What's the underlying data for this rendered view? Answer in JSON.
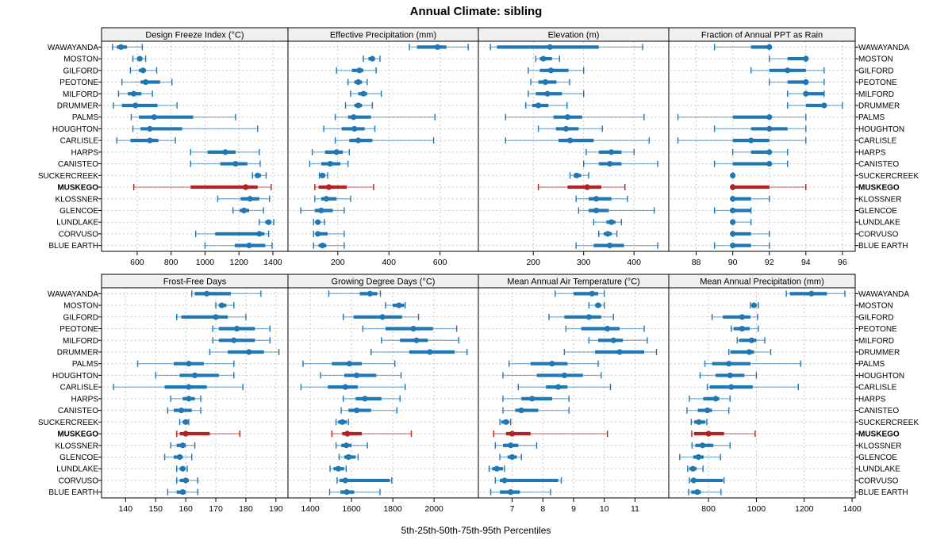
{
  "title": "Annual Climate: sibling",
  "caption": "5th-25th-50th-75th-95th Percentiles",
  "colors": {
    "series_normal": "#1F77B4",
    "series_highlight": "#B22222",
    "grid": "#C8C8C8",
    "header_bg": "#F0F0F0",
    "border": "#000000"
  },
  "chart_data": {
    "type": "scatter",
    "subtype": "percentile-interval-dotplot",
    "title": "Annual Climate: sibling",
    "xlabel": "5th-25th-50th-75th-95th Percentiles",
    "percentiles": [
      5,
      25,
      50,
      75,
      95
    ],
    "legend_position": "none",
    "grid": "dotted",
    "highlight_site": "MUSKEGO",
    "sites": [
      "WAWAYANDA",
      "MOSTON",
      "GILFORD",
      "PEOTONE",
      "MILFORD",
      "DRUMMER",
      "PALMS",
      "HOUGHTON",
      "CARLISLE",
      "HARPS",
      "CANISTEO",
      "SUCKERCREEK",
      "MUSKEGO",
      "KLOSSNER",
      "GLENCOE",
      "LUNDLAKE",
      "CORVUSO",
      "BLUE EARTH"
    ],
    "panels": [
      {
        "title": "Design Freeze Index (°C)",
        "ticks": [
          600,
          800,
          1000,
          1200,
          1400
        ],
        "xlim": [
          390,
          1489
        ],
        "rows": [
          [
            455,
            480,
            505,
            540,
            630
          ],
          [
            575,
            600,
            615,
            630,
            650
          ],
          [
            560,
            610,
            635,
            650,
            715
          ],
          [
            510,
            620,
            650,
            735,
            805
          ],
          [
            490,
            545,
            580,
            625,
            690
          ],
          [
            460,
            510,
            590,
            720,
            835
          ],
          [
            565,
            610,
            700,
            930,
            1180
          ],
          [
            575,
            620,
            675,
            865,
            1310
          ],
          [
            480,
            560,
            675,
            725,
            825
          ],
          [
            915,
            1015,
            1120,
            1180,
            1320
          ],
          [
            915,
            1090,
            1180,
            1250,
            1325
          ],
          [
            1280,
            1295,
            1310,
            1330,
            1360
          ],
          [
            580,
            915,
            1240,
            1310,
            1390
          ],
          [
            1075,
            1210,
            1265,
            1320,
            1380
          ],
          [
            1165,
            1205,
            1230,
            1260,
            1345
          ],
          [
            1320,
            1355,
            1375,
            1390,
            1405
          ],
          [
            945,
            1060,
            1320,
            1350,
            1375
          ],
          [
            1000,
            1175,
            1260,
            1355,
            1395
          ]
        ]
      },
      {
        "title": "Effective Precipitation (mm)",
        "ticks": [
          200,
          400,
          600
        ],
        "xlim": [
          5,
          750
        ],
        "rows": [
          [
            480,
            510,
            590,
            625,
            710
          ],
          [
            300,
            320,
            335,
            345,
            365
          ],
          [
            195,
            255,
            285,
            300,
            350
          ],
          [
            240,
            265,
            280,
            295,
            315
          ],
          [
            250,
            280,
            300,
            315,
            370
          ],
          [
            230,
            265,
            280,
            295,
            335
          ],
          [
            190,
            240,
            262,
            330,
            580
          ],
          [
            145,
            215,
            265,
            305,
            345
          ],
          [
            190,
            245,
            280,
            335,
            575
          ],
          [
            100,
            150,
            195,
            220,
            245
          ],
          [
            90,
            135,
            170,
            210,
            240
          ],
          [
            128,
            134,
            140,
            150,
            160
          ],
          [
            110,
            125,
            165,
            235,
            340
          ],
          [
            110,
            135,
            155,
            195,
            250
          ],
          [
            55,
            110,
            135,
            180,
            225
          ],
          [
            105,
            115,
            122,
            130,
            148
          ],
          [
            105,
            115,
            122,
            160,
            225
          ],
          [
            105,
            125,
            140,
            155,
            225
          ]
        ]
      },
      {
        "title": "Elevation (m)",
        "ticks": [
          200,
          300,
          400
        ],
        "xlim": [
          91,
          469
        ],
        "rows": [
          [
            115,
            128,
            233,
            330,
            417
          ],
          [
            205,
            213,
            220,
            237,
            252
          ],
          [
            190,
            213,
            235,
            270,
            300
          ],
          [
            195,
            210,
            224,
            246,
            272
          ],
          [
            190,
            205,
            228,
            257,
            300
          ],
          [
            185,
            198,
            210,
            230,
            267
          ],
          [
            145,
            240,
            268,
            297,
            420
          ],
          [
            210,
            245,
            265,
            290,
            337
          ],
          [
            145,
            250,
            273,
            320,
            430
          ],
          [
            305,
            330,
            355,
            375,
            400
          ],
          [
            300,
            330,
            352,
            375,
            447
          ],
          [
            273,
            280,
            286,
            295,
            310
          ],
          [
            210,
            268,
            307,
            335,
            382
          ],
          [
            285,
            310,
            325,
            355,
            387
          ],
          [
            290,
            310,
            325,
            350,
            440
          ],
          [
            320,
            345,
            355,
            363,
            375
          ],
          [
            330,
            340,
            348,
            356,
            366
          ],
          [
            285,
            320,
            352,
            380,
            447
          ]
        ]
      },
      {
        "title": "Fraction of Annual PPT as Rain",
        "ticks": [
          88,
          90,
          92,
          94,
          96
        ],
        "xlim": [
          86.5,
          96.7
        ],
        "rows": [
          [
            89,
            91,
            92,
            92,
            92
          ],
          [
            92,
            93,
            94,
            94,
            94
          ],
          [
            91,
            92,
            93,
            94,
            95
          ],
          [
            92,
            93,
            94,
            94,
            95
          ],
          [
            93,
            94,
            94,
            95,
            95
          ],
          [
            93,
            94,
            95,
            95,
            96
          ],
          [
            87,
            90,
            92,
            92,
            94
          ],
          [
            89,
            91,
            92,
            93,
            94
          ],
          [
            87,
            90,
            91,
            92,
            94
          ],
          [
            90,
            91,
            92,
            92,
            93
          ],
          [
            89,
            90,
            92,
            92,
            93
          ],
          [
            90,
            90,
            90,
            90,
            90
          ],
          [
            90,
            90,
            90,
            92,
            94
          ],
          [
            90,
            90,
            90,
            91,
            92
          ],
          [
            89,
            90,
            90,
            91,
            91
          ],
          [
            90,
            90,
            90,
            90,
            91
          ],
          [
            90,
            90,
            90,
            91,
            92
          ],
          [
            89,
            90,
            90,
            91,
            92
          ]
        ]
      },
      {
        "title": "Frost-Free Days",
        "ticks": [
          140,
          150,
          160,
          170,
          180,
          190
        ],
        "xlim": [
          132,
          194
        ],
        "rows": [
          [
            162,
            163,
            167,
            175,
            185
          ],
          [
            170,
            171,
            172,
            173.5,
            176
          ],
          [
            157,
            158.5,
            170,
            174,
            180
          ],
          [
            169,
            171,
            177,
            183,
            188
          ],
          [
            169,
            171,
            176,
            183,
            188
          ],
          [
            168,
            174,
            181,
            186,
            191
          ],
          [
            144,
            156,
            161,
            166,
            176
          ],
          [
            150,
            158,
            163,
            171,
            176
          ],
          [
            136,
            153,
            161,
            167,
            179
          ],
          [
            155,
            159,
            161,
            163,
            165
          ],
          [
            154,
            156,
            158.5,
            162,
            165
          ],
          [
            158,
            159,
            160,
            160.5,
            161
          ],
          [
            157,
            158,
            160,
            168,
            178
          ],
          [
            155,
            157,
            159,
            160,
            163
          ],
          [
            153,
            156,
            158,
            159,
            162
          ],
          [
            157,
            158,
            159,
            159.5,
            160.5
          ],
          [
            157,
            158,
            160,
            161,
            164
          ],
          [
            154,
            157,
            159,
            160,
            164
          ]
        ]
      },
      {
        "title": "Growing Degree Days (°C)",
        "ticks": [
          1400,
          1600,
          1800,
          2000
        ],
        "xlim": [
          1292,
          2215
        ],
        "rows": [
          [
            1490,
            1640,
            1690,
            1725,
            1740
          ],
          [
            1765,
            1800,
            1830,
            1855,
            1860
          ],
          [
            1560,
            1610,
            1750,
            1845,
            1925
          ],
          [
            1655,
            1765,
            1900,
            1995,
            2110
          ],
          [
            1745,
            1835,
            1915,
            1970,
            2120
          ],
          [
            1695,
            1880,
            1980,
            2100,
            2160
          ],
          [
            1365,
            1505,
            1590,
            1650,
            1810
          ],
          [
            1450,
            1565,
            1625,
            1720,
            1840
          ],
          [
            1355,
            1485,
            1570,
            1630,
            1860
          ],
          [
            1560,
            1620,
            1665,
            1745,
            1835
          ],
          [
            1550,
            1585,
            1625,
            1695,
            1820
          ],
          [
            1525,
            1535,
            1555,
            1577,
            1585
          ],
          [
            1505,
            1555,
            1580,
            1650,
            1890
          ],
          [
            1525,
            1550,
            1575,
            1600,
            1677
          ],
          [
            1540,
            1565,
            1585,
            1620,
            1632
          ],
          [
            1496,
            1513,
            1536,
            1564,
            1574
          ],
          [
            1530,
            1542,
            1570,
            1786,
            1795
          ],
          [
            1494,
            1546,
            1577,
            1613,
            1738
          ]
        ]
      },
      {
        "title": "Mean Annual Air Temperature (°C)",
        "ticks": [
          7,
          8,
          9,
          10,
          11
        ],
        "xlim": [
          5.9,
          12.1
        ],
        "rows": [
          [
            8.4,
            9.0,
            9.6,
            9.8,
            10.0
          ],
          [
            9.5,
            9.7,
            9.8,
            9.9,
            10.0
          ],
          [
            8.2,
            8.7,
            9.5,
            9.9,
            10.3
          ],
          [
            8.75,
            9.25,
            10.1,
            10.5,
            11.3
          ],
          [
            9.5,
            9.8,
            10.3,
            10.6,
            11.4
          ],
          [
            8.7,
            9.7,
            10.5,
            11.3,
            11.7
          ],
          [
            6.9,
            7.6,
            8.3,
            8.8,
            9.8
          ],
          [
            6.7,
            7.8,
            8.7,
            9.3,
            9.9
          ],
          [
            7.2,
            8.1,
            8.5,
            8.8,
            10.2
          ],
          [
            6.7,
            7.3,
            7.65,
            8.3,
            8.85
          ],
          [
            6.7,
            7.1,
            7.3,
            7.85,
            8.85
          ],
          [
            6.6,
            6.65,
            6.8,
            6.9,
            6.95
          ],
          [
            6.4,
            6.8,
            7.0,
            7.6,
            10.1
          ],
          [
            6.45,
            6.7,
            6.95,
            7.2,
            7.8
          ],
          [
            6.6,
            6.85,
            7.0,
            7.15,
            7.3
          ],
          [
            6.25,
            6.35,
            6.5,
            6.7,
            6.75
          ],
          [
            6.45,
            6.6,
            6.75,
            8.5,
            8.6
          ],
          [
            6.3,
            6.6,
            6.95,
            7.25,
            8.25
          ]
        ]
      },
      {
        "title": "Mean Annual Precipitation (mm)",
        "ticks": [
          800,
          1000,
          1200,
          1400
        ],
        "xlim": [
          634,
          1413
        ],
        "rows": [
          [
            1125,
            1140,
            1230,
            1295,
            1370
          ],
          [
            975,
            982,
            990,
            1000,
            1008
          ],
          [
            815,
            860,
            940,
            975,
            1005
          ],
          [
            895,
            905,
            940,
            972,
            1008
          ],
          [
            920,
            928,
            980,
            1000,
            1035
          ],
          [
            885,
            892,
            970,
            990,
            1060
          ],
          [
            785,
            815,
            885,
            975,
            1185
          ],
          [
            765,
            830,
            890,
            950,
            1000
          ],
          [
            795,
            805,
            895,
            985,
            1175
          ],
          [
            720,
            778,
            830,
            845,
            890
          ],
          [
            710,
            755,
            795,
            815,
            885
          ],
          [
            728,
            740,
            760,
            787,
            793
          ],
          [
            730,
            740,
            800,
            865,
            995
          ],
          [
            731,
            745,
            775,
            820,
            890
          ],
          [
            680,
            736,
            758,
            780,
            850
          ],
          [
            713,
            720,
            735,
            750,
            777
          ],
          [
            720,
            725,
            738,
            860,
            865
          ],
          [
            717,
            728,
            753,
            768,
            852
          ]
        ]
      }
    ]
  }
}
